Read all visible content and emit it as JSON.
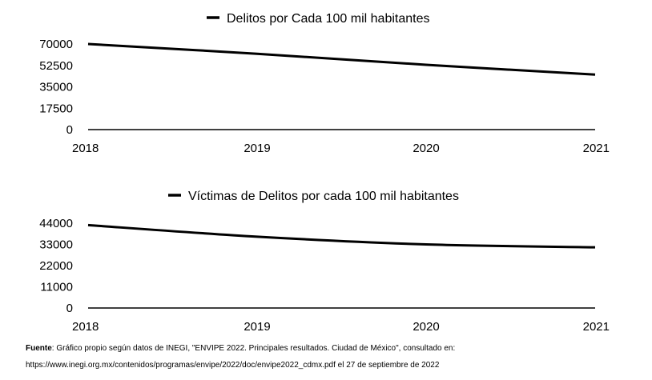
{
  "chart_data": [
    {
      "type": "line",
      "categories": [
        "2018",
        "2019",
        "2020",
        "2021"
      ],
      "series": [
        {
          "name": "Delitos por Cada 100 mil habitantes",
          "values": [
            70000,
            62000,
            53000,
            45000
          ],
          "color": "#000000"
        }
      ],
      "yticks": [
        0,
        17500,
        35000,
        52500,
        70000
      ],
      "ylim": [
        0,
        70000
      ],
      "legend": "top-center",
      "grid": false
    },
    {
      "type": "line",
      "categories": [
        "2018",
        "2019",
        "2020",
        "2021"
      ],
      "series": [
        {
          "name": "Víctimas de Delitos por cada 100 mil habitantes",
          "values": [
            43000,
            37000,
            33000,
            31500
          ],
          "color": "#000000"
        }
      ],
      "yticks": [
        0,
        11000,
        22000,
        33000,
        44000
      ],
      "ylim": [
        0,
        44000
      ],
      "legend": "top-center",
      "grid": false
    }
  ],
  "source": {
    "label": "Fuente",
    "text": ": Gráfico propio según datos de INEGI, \"ENVIPE 2022. Principales resultados. Ciudad de México\", consultado en: https://www.inegi.org.mx/contenidos/programas/envipe/2022/doc/envipe2022_cdmx.pdf el 27 de septiembre de 2022"
  }
}
